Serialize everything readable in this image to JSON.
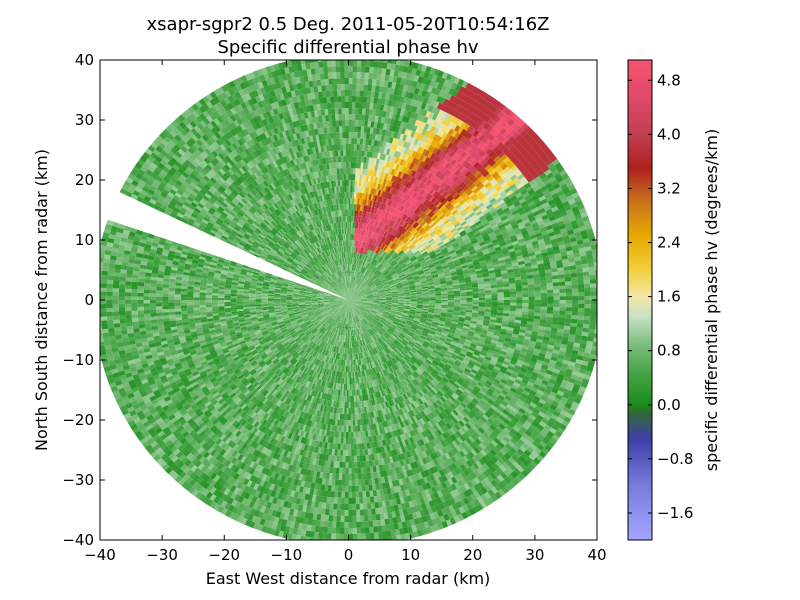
{
  "chart_data": {
    "type": "heatmap",
    "title_line1": "xsapr-sgpr2 0.5 Deg. 2011-05-20T10:54:16Z",
    "title_line2": "Specific differential phase hv",
    "xlabel": "East West distance from radar (km)",
    "ylabel": "North South distance from radar (km)",
    "xlim": [
      -40,
      40
    ],
    "ylim": [
      -40,
      40
    ],
    "x_ticks": [
      -40,
      -30,
      -20,
      -10,
      0,
      10,
      20,
      30,
      40
    ],
    "y_ticks": [
      -40,
      -30,
      -20,
      -10,
      0,
      10,
      20,
      30,
      40
    ],
    "x_tick_labels": [
      "−40",
      "−30",
      "−20",
      "−10",
      "0",
      "10",
      "20",
      "30",
      "40"
    ],
    "y_tick_labels": [
      "−40",
      "−30",
      "−20",
      "−10",
      "0",
      "10",
      "20",
      "30",
      "40"
    ],
    "max_range_km": 41,
    "blocked_sector_az_deg": [
      289,
      296
    ],
    "colorbar": {
      "label": "specific differential phase hv (degrees/km)",
      "min": -2.0,
      "max": 5.1,
      "ticks": [
        -1.6,
        -0.8,
        0.0,
        0.8,
        1.6,
        2.4,
        3.2,
        4.0,
        4.8
      ],
      "tick_labels": [
        "−1.6",
        "−0.8",
        "0.0",
        "0.8",
        "1.6",
        "2.4",
        "3.2",
        "4.0",
        "4.8"
      ],
      "colors": [
        {
          "v": -2.0,
          "c": "#a5a5ff"
        },
        {
          "v": -1.2,
          "c": "#7b7bde"
        },
        {
          "v": -0.5,
          "c": "#3e3ea8"
        },
        {
          "v": -0.1,
          "c": "#2f6b2f"
        },
        {
          "v": 0.0,
          "c": "#1a8c1a"
        },
        {
          "v": 0.5,
          "c": "#4aa64a"
        },
        {
          "v": 0.9,
          "c": "#7ebe7e"
        },
        {
          "v": 1.3,
          "c": "#c6e2c6"
        },
        {
          "v": 1.6,
          "c": "#f3e6a6"
        },
        {
          "v": 2.0,
          "c": "#f2cf3a"
        },
        {
          "v": 2.5,
          "c": "#e8a800"
        },
        {
          "v": 3.0,
          "c": "#c8741c"
        },
        {
          "v": 3.5,
          "c": "#b02020"
        },
        {
          "v": 4.0,
          "c": "#c04050"
        },
        {
          "v": 4.5,
          "c": "#e0486a"
        },
        {
          "v": 5.1,
          "c": "#f5546f"
        }
      ]
    },
    "background_kdp_deg_per_km": 0.6,
    "features": [
      {
        "name": "northeast rain band",
        "x": [
          2,
          40
        ],
        "y": [
          10,
          40
        ],
        "kdp_peak": 4.8
      }
    ]
  }
}
